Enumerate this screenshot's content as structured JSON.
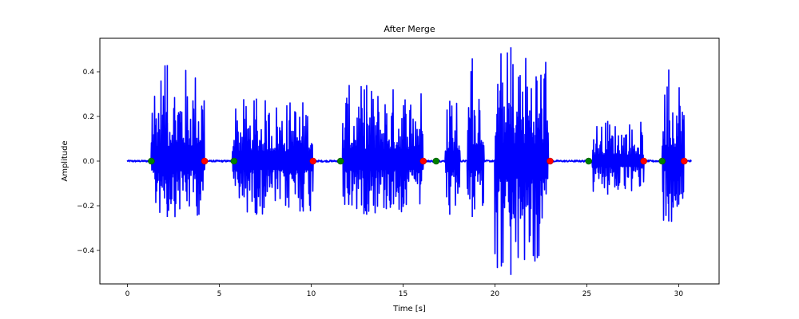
{
  "chart_data": {
    "type": "line",
    "title": "After Merge",
    "xlabel": "Time [s]",
    "ylabel": "Amplitude",
    "xlim": [
      -1.5,
      32.2
    ],
    "ylim": [
      -0.55,
      0.55
    ],
    "xticks": [
      0,
      5,
      10,
      15,
      20,
      25,
      30
    ],
    "xtick_labels": [
      "0",
      "5",
      "10",
      "15",
      "20",
      "25",
      "30"
    ],
    "yticks": [
      -0.4,
      -0.2,
      0.0,
      0.2,
      0.4
    ],
    "ytick_labels": [
      "−0.4",
      "−0.2",
      "0.0",
      "0.2",
      "0.4"
    ],
    "grid": false,
    "waveform": {
      "color": "#0000ff",
      "t_start": 0.0,
      "t_end": 30.7,
      "segments": [
        {
          "start": 1.3,
          "end": 4.2,
          "max": 0.43,
          "min": -0.25
        },
        {
          "start": 5.7,
          "end": 10.1,
          "max": 0.28,
          "min": -0.24
        },
        {
          "start": 11.7,
          "end": 16.1,
          "max": 0.34,
          "min": -0.24
        },
        {
          "start": 17.3,
          "end": 18.1,
          "max": 0.27,
          "min": -0.24
        },
        {
          "start": 18.5,
          "end": 19.4,
          "max": 0.46,
          "min": -0.25
        },
        {
          "start": 20.0,
          "end": 22.9,
          "max": 0.51,
          "min": -0.51
        },
        {
          "start": 25.3,
          "end": 28.1,
          "max": 0.18,
          "min": -0.15
        },
        {
          "start": 29.1,
          "end": 30.3,
          "max": 0.41,
          "min": -0.27
        }
      ]
    },
    "markers": {
      "start_color": "#008000",
      "end_color": "#ff0000",
      "starts": [
        1.3,
        5.8,
        11.6,
        16.8,
        25.1,
        29.1
      ],
      "ends": [
        4.2,
        10.1,
        16.1,
        23.0,
        28.1,
        30.3
      ]
    }
  }
}
